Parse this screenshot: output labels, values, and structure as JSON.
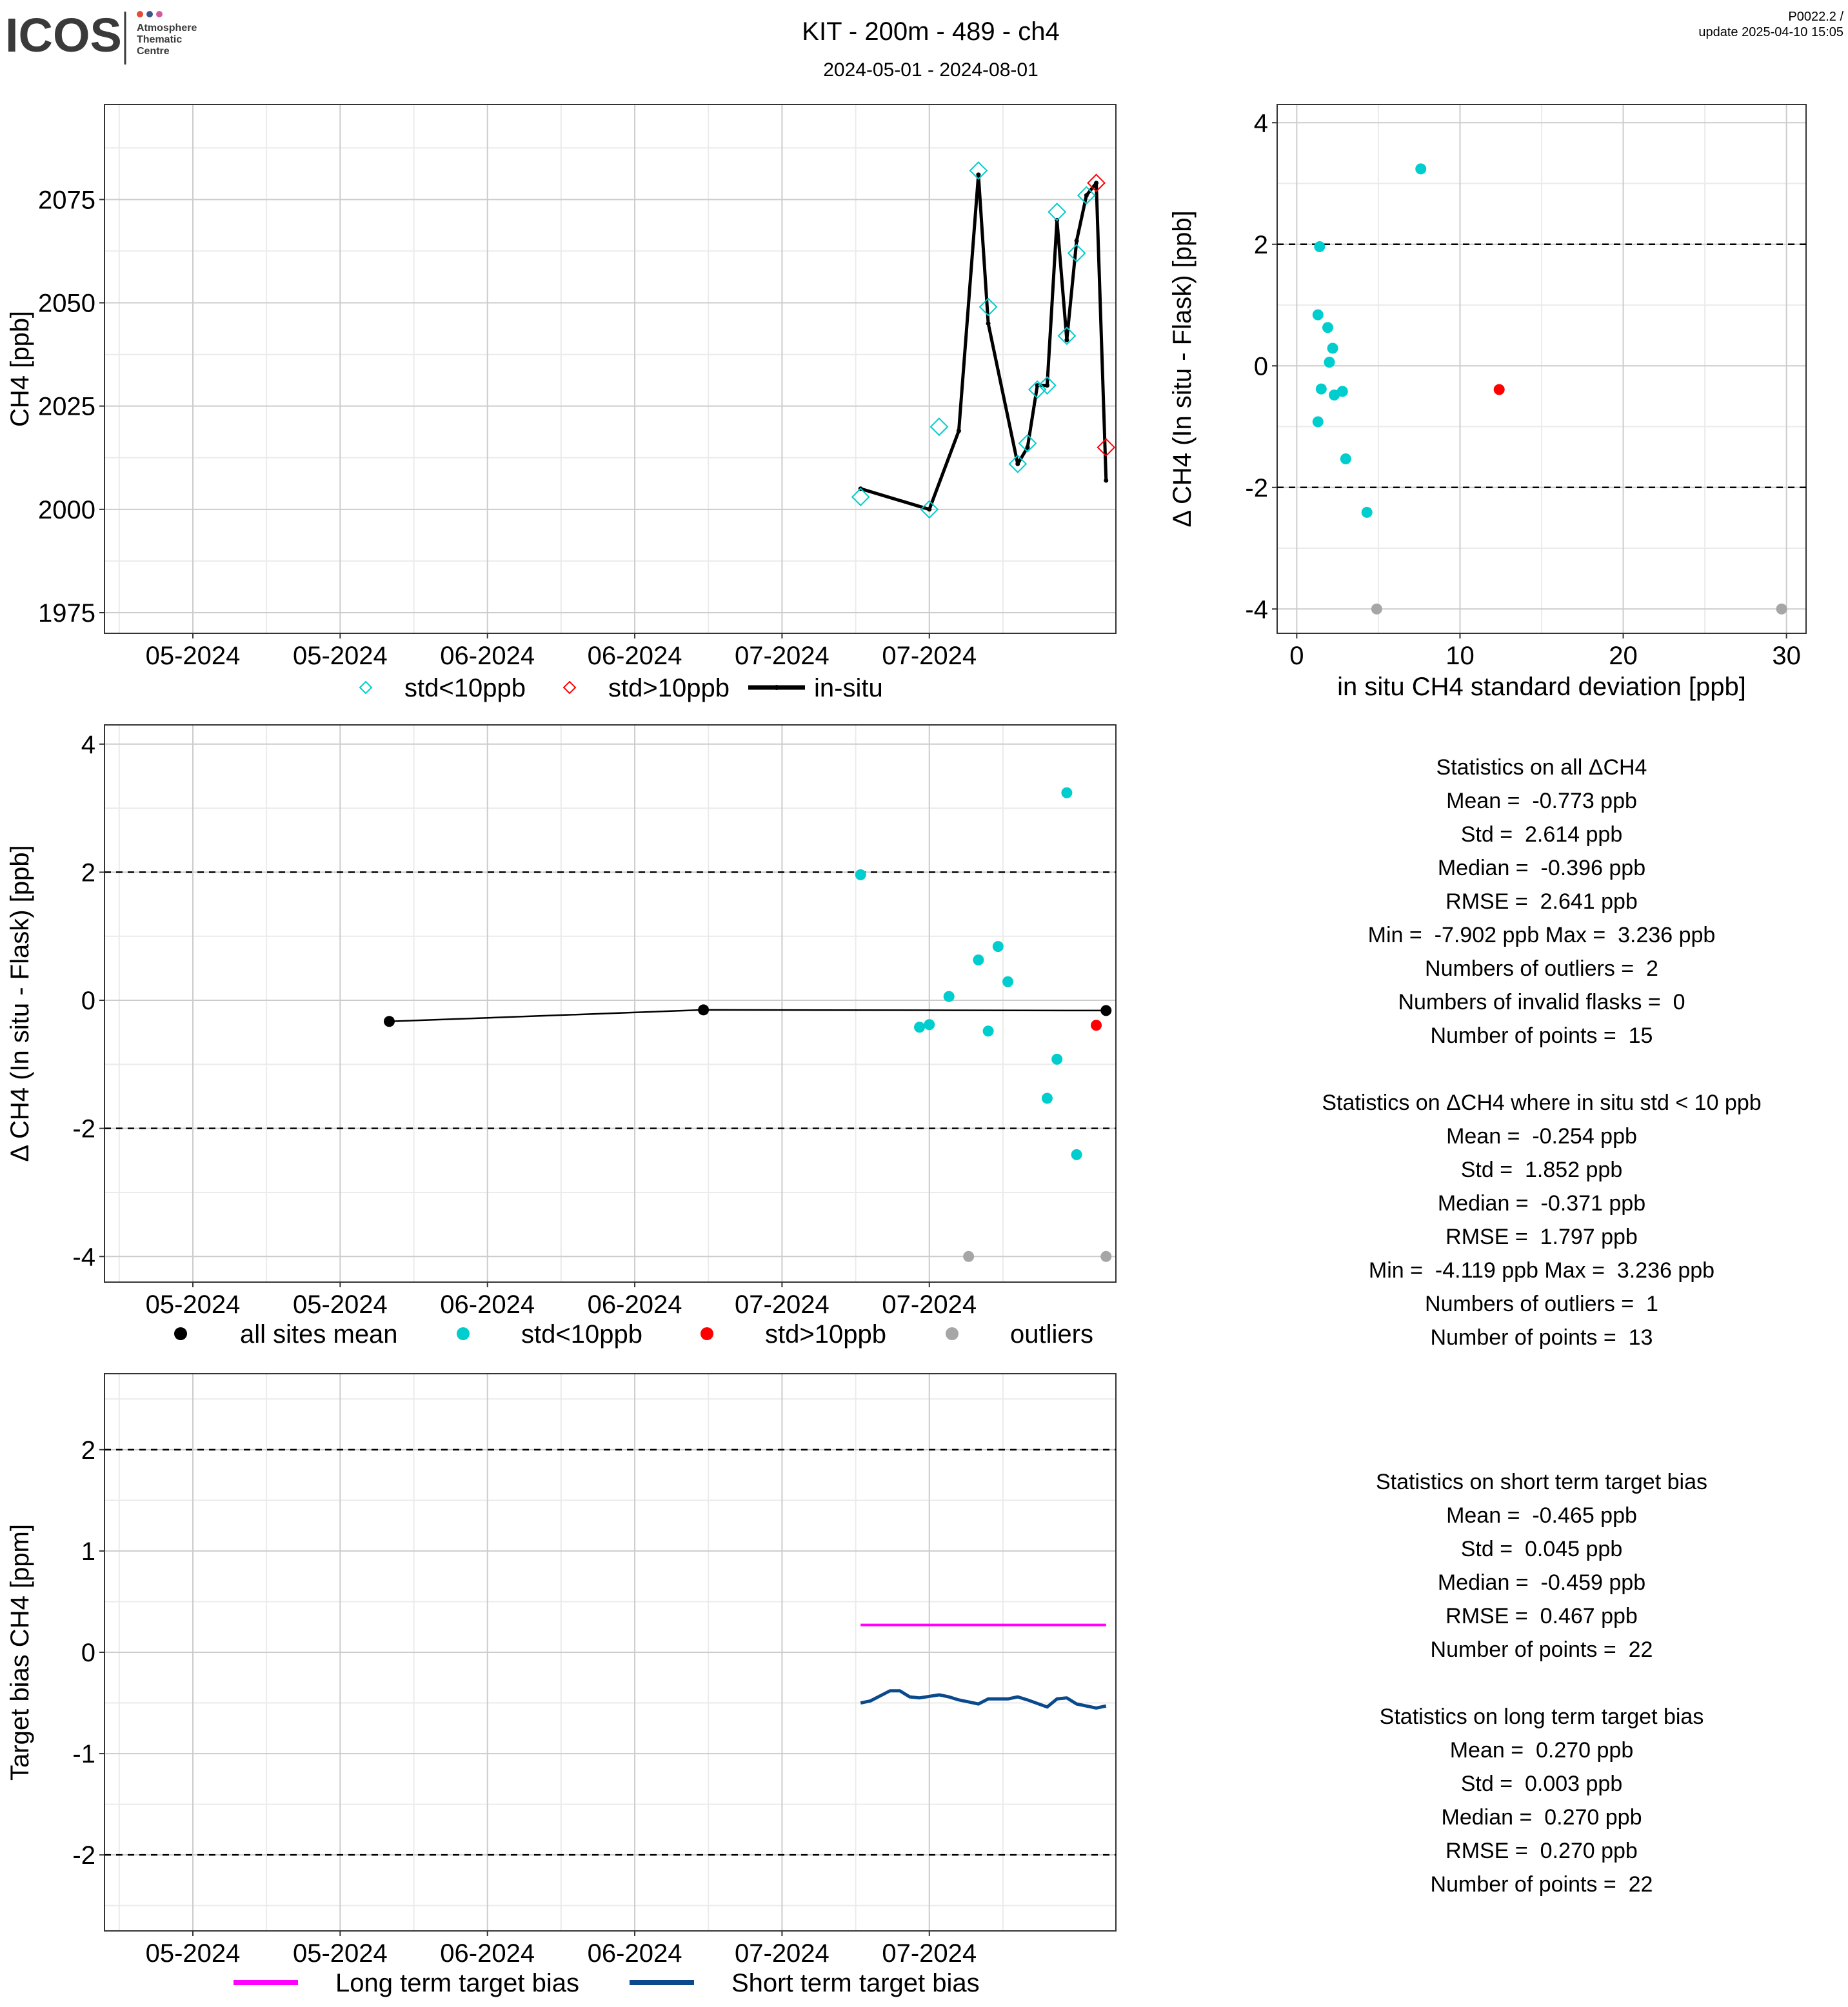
{
  "header": {
    "logo_text": "ICOS",
    "logo_sub": [
      "Atmosphere",
      "Thematic",
      "Centre"
    ],
    "title": "KIT - 200m - 489 - ch4",
    "subtitle": "2024-05-01 - 2024-08-01",
    "version": "P0022.2 /",
    "update": "update  2025-04-10 15:05"
  },
  "colors": {
    "std_lt10": "#00CDCD",
    "std_gt10": "#FF0000",
    "outlier": "#A6A6A6",
    "insitu": "#000000",
    "mean": "#000000",
    "long_bias": "#FF00FF",
    "short_bias": "#0A4A8C",
    "grid_major": "#CCCCCC",
    "grid_minor": "#EBEBEB"
  },
  "chart_data": [
    {
      "id": "timeseries",
      "type": "line",
      "ylabel": "CH4 [ppb]",
      "xlabel": "",
      "x_ticks": [
        "05-2024",
        "05-2024",
        "06-2024",
        "06-2024",
        "07-2024",
        "07-2024"
      ],
      "ylim": [
        1970,
        2098
      ],
      "y_ticks": [
        1975,
        2000,
        2025,
        2050,
        2075
      ],
      "grid": true,
      "legend": [
        "std<10ppb",
        "std>10ppb",
        "in-situ"
      ],
      "legend_position": "bottom",
      "series": [
        {
          "name": "in-situ",
          "x": [
            "2024-07-08",
            "2024-07-15",
            "2024-07-18",
            "2024-07-20",
            "2024-07-21",
            "2024-07-24",
            "2024-07-25",
            "2024-07-26",
            "2024-07-27",
            "2024-07-28",
            "2024-07-29",
            "2024-07-30",
            "2024-07-31",
            "2024-08-01",
            "2024-08-02"
          ],
          "y": [
            2005,
            2000,
            2019,
            2081,
            2045,
            2011,
            2015,
            2030,
            2030,
            2070,
            2041,
            2065,
            2076,
            2079,
            2007
          ]
        },
        {
          "name": "std<10ppb",
          "x": [
            "2024-07-08",
            "2024-07-15",
            "2024-07-16",
            "2024-07-20",
            "2024-07-21",
            "2024-07-24",
            "2024-07-25",
            "2024-07-26",
            "2024-07-27",
            "2024-07-28",
            "2024-07-29",
            "2024-07-30",
            "2024-07-31"
          ],
          "y": [
            2003,
            2000,
            2020,
            2082,
            2049,
            2011,
            2016,
            2029,
            2030,
            2072,
            2042,
            2062,
            2076
          ]
        },
        {
          "name": "std>10ppb",
          "x": [
            "2024-08-01",
            "2024-08-02"
          ],
          "y": [
            2079,
            2015
          ]
        }
      ]
    },
    {
      "id": "delta_vs_std",
      "type": "scatter",
      "xlabel": "in situ CH4 standard deviation [ppb]",
      "ylabel": "Δ CH4 (In situ - Flask) [ppb]",
      "xlim": [
        0,
        31.2
      ],
      "ylim": [
        -4.4,
        4.3
      ],
      "x_ticks": [
        0,
        10,
        20,
        30
      ],
      "y_ticks": [
        -4,
        -2,
        0,
        2,
        4
      ],
      "hlines": [
        -2,
        2
      ],
      "grid": true,
      "series": [
        {
          "name": "std<10ppb",
          "x": [
            7.6,
            1.4,
            1.3,
            1.9,
            2.2,
            2.0,
            1.5,
            2.3,
            2.8,
            1.3,
            3.0,
            4.3
          ],
          "y": [
            3.24,
            1.96,
            0.84,
            0.63,
            0.29,
            0.06,
            -0.38,
            -0.48,
            -0.42,
            -0.92,
            -1.53,
            -2.41
          ]
        },
        {
          "name": "std>10ppb",
          "x": [
            12.4
          ],
          "y": [
            -0.39
          ]
        },
        {
          "name": "outliers",
          "x": [
            4.9,
            29.7
          ],
          "y": [
            -4.0,
            -4.0
          ]
        }
      ]
    },
    {
      "id": "delta_timeseries",
      "type": "scatter",
      "ylabel": "Δ CH4 (In situ - Flask) [ppb]",
      "xlabel": "",
      "x_ticks": [
        "05-2024",
        "05-2024",
        "06-2024",
        "06-2024",
        "07-2024",
        "07-2024"
      ],
      "ylim": [
        -4.4,
        4.3
      ],
      "y_ticks": [
        -4,
        -2,
        0,
        2,
        4
      ],
      "hlines": [
        -2,
        2
      ],
      "grid": true,
      "legend": [
        "all sites mean",
        "std<10ppb",
        "std>10ppb",
        "outliers"
      ],
      "legend_position": "bottom",
      "series": [
        {
          "name": "all sites mean",
          "x": [
            "2024-05-21",
            "2024-06-22",
            "2024-08-02"
          ],
          "y": [
            -0.33,
            -0.15,
            -0.16
          ]
        },
        {
          "name": "std<10ppb",
          "x": [
            "2024-07-08",
            "2024-07-14",
            "2024-07-15",
            "2024-07-17",
            "2024-07-20",
            "2024-07-21",
            "2024-07-22",
            "2024-07-23",
            "2024-07-27",
            "2024-07-28",
            "2024-07-29",
            "2024-07-30"
          ],
          "y": [
            1.96,
            -0.42,
            -0.38,
            0.06,
            0.63,
            -0.48,
            0.84,
            0.29,
            -1.53,
            -0.92,
            3.24,
            -2.41
          ]
        },
        {
          "name": "std>10ppb",
          "x": [
            "2024-08-01"
          ],
          "y": [
            -0.39
          ]
        },
        {
          "name": "outliers",
          "x": [
            "2024-07-19",
            "2024-08-02"
          ],
          "y": [
            -4.0,
            -4.0
          ]
        }
      ]
    },
    {
      "id": "target_bias",
      "type": "line",
      "ylabel": "Target bias CH4 [ppm]",
      "xlabel": "",
      "x_ticks": [
        "05-2024",
        "05-2024",
        "06-2024",
        "06-2024",
        "07-2024",
        "07-2024"
      ],
      "ylim": [
        -2.75,
        2.75
      ],
      "y_ticks": [
        -2,
        -1,
        0,
        1,
        2
      ],
      "hlines": [
        -2,
        2
      ],
      "grid": true,
      "legend": [
        "Long term target bias",
        "Short term target bias"
      ],
      "legend_position": "bottom",
      "series": [
        {
          "name": "Long term target bias",
          "x": [
            "2024-07-08",
            "2024-07-15",
            "2024-07-22",
            "2024-07-29",
            "2024-08-02"
          ],
          "y": [
            0.27,
            0.27,
            0.27,
            0.27,
            0.27
          ]
        },
        {
          "name": "Short term target bias",
          "x": [
            "2024-07-08",
            "2024-07-09",
            "2024-07-11",
            "2024-07-12",
            "2024-07-13",
            "2024-07-14",
            "2024-07-16",
            "2024-07-17",
            "2024-07-18",
            "2024-07-19",
            "2024-07-20",
            "2024-07-21",
            "2024-07-22",
            "2024-07-23",
            "2024-07-24",
            "2024-07-25",
            "2024-07-27",
            "2024-07-28",
            "2024-07-29",
            "2024-07-30",
            "2024-08-01",
            "2024-08-02"
          ],
          "y": [
            -0.5,
            -0.48,
            -0.38,
            -0.38,
            -0.44,
            -0.45,
            -0.42,
            -0.44,
            -0.47,
            -0.49,
            -0.51,
            -0.46,
            -0.46,
            -0.46,
            -0.44,
            -0.47,
            -0.54,
            -0.46,
            -0.45,
            -0.51,
            -0.55,
            -0.53
          ]
        }
      ]
    }
  ],
  "stats_blocks": [
    {
      "id": "stats-all",
      "lines": [
        "Statistics on all ΔCH4",
        "Mean =  -0.773 ppb",
        "Std =  2.614 ppb",
        "Median =  -0.396 ppb",
        "RMSE =  2.641 ppb",
        "Min =  -7.902 ppb Max =  3.236 ppb",
        "Numbers of outliers =  2",
        "Numbers of invalid flasks =  0",
        "Number of points =  15",
        "",
        "Statistics on ΔCH4 where in situ std < 10 ppb",
        "Mean =  -0.254 ppb",
        "Std =  1.852 ppb",
        "Median =  -0.371 ppb",
        "RMSE =  1.797 ppb",
        "Min =  -4.119 ppb Max =  3.236 ppb",
        "Numbers of outliers =  1",
        "Number of points =  13"
      ]
    },
    {
      "id": "stats-bias",
      "lines": [
        "Statistics on short term target bias",
        "Mean =  -0.465 ppb",
        "Std =  0.045 ppb",
        "Median =  -0.459 ppb",
        "RMSE =  0.467 ppb",
        "Number of points =  22",
        "",
        "Statistics on long term target bias",
        "Mean =  0.270 ppb",
        "Std =  0.003 ppb",
        "Median =  0.270 ppb",
        "RMSE =  0.270 ppb",
        "Number of points =  22"
      ]
    }
  ]
}
